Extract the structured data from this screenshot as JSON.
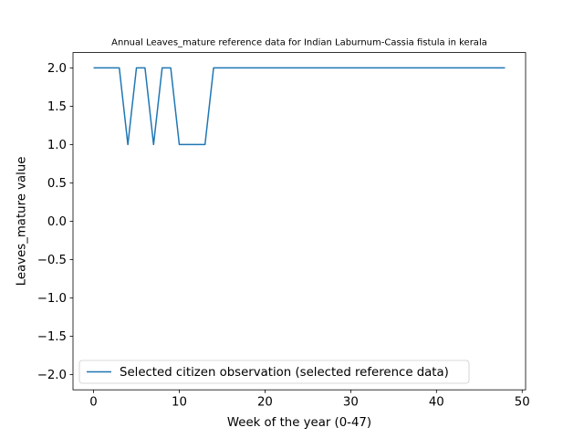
{
  "chart_data": {
    "type": "line",
    "title": "Annual Leaves_mature reference data for Indian Laburnum-Cassia fistula in kerala",
    "xlabel": "Week of the year (0-47)",
    "ylabel": "Leaves_mature value",
    "xlim": [
      -2.4,
      50.4
    ],
    "ylim": [
      -2.2,
      2.2
    ],
    "xticks": [
      0,
      10,
      20,
      30,
      40,
      50
    ],
    "yticks": [
      -2.0,
      -1.5,
      -1.0,
      -0.5,
      0.0,
      0.5,
      1.0,
      1.5,
      2.0
    ],
    "xtick_labels": [
      "0",
      "10",
      "20",
      "30",
      "40",
      "50"
    ],
    "ytick_labels": [
      "−2.0",
      "−1.5",
      "−1.0",
      "−0.5",
      "0.0",
      "0.5",
      "1.0",
      "1.5",
      "2.0"
    ],
    "grid": false,
    "legend_position": "lower-left",
    "series": [
      {
        "name": "Selected citizen observation (selected reference data)",
        "color": "#1f77b4",
        "x": [
          0,
          1,
          2,
          3,
          4,
          5,
          6,
          7,
          8,
          9,
          10,
          11,
          12,
          13,
          14,
          15,
          16,
          17,
          18,
          19,
          20,
          21,
          22,
          23,
          24,
          25,
          26,
          27,
          28,
          29,
          30,
          31,
          32,
          33,
          34,
          35,
          36,
          37,
          38,
          39,
          40,
          41,
          42,
          43,
          44,
          45,
          46,
          47,
          48
        ],
        "y": [
          2,
          2,
          2,
          2,
          1,
          2,
          2,
          1,
          2,
          2,
          1,
          1,
          1,
          1,
          2,
          2,
          2,
          2,
          2,
          2,
          2,
          2,
          2,
          2,
          2,
          2,
          2,
          2,
          2,
          2,
          2,
          2,
          2,
          2,
          2,
          2,
          2,
          2,
          2,
          2,
          2,
          2,
          2,
          2,
          2,
          2,
          2,
          2,
          2
        ]
      }
    ]
  }
}
